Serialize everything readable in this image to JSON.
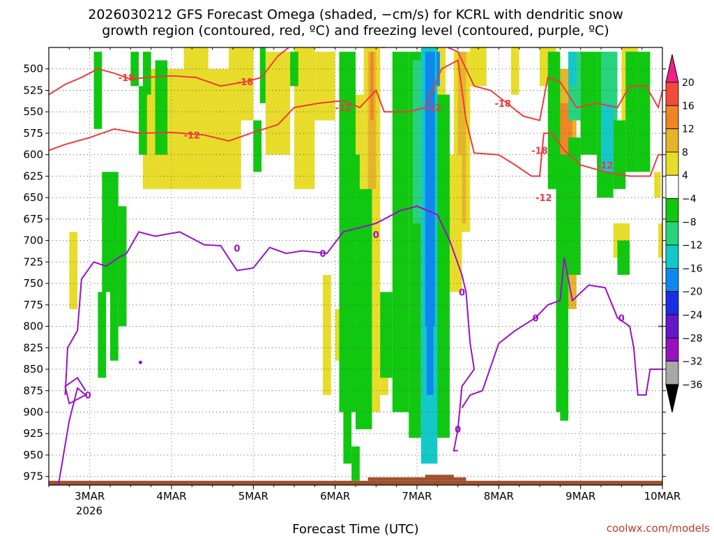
{
  "chart_data": {
    "type": "heatmap",
    "title_line1": "2026030212 GFS Forecast Omega (shaded, −cm/s) for KCRL with dendritic snow",
    "title_line2": "growth region (contoured, red, ºC) and freezing level (contoured, purple, ºC)",
    "xlabel": "Forecast Time (UTC)",
    "x_tick_labels": [
      "3MAR",
      "4MAR",
      "5MAR",
      "6MAR",
      "7MAR",
      "8MAR",
      "9MAR",
      "10MAR"
    ],
    "x_tick_year": "2026",
    "x_range_days": [
      2.5,
      10.0
    ],
    "y_pressure_levels": [
      500,
      525,
      550,
      575,
      600,
      625,
      650,
      675,
      700,
      725,
      750,
      775,
      800,
      825,
      850,
      875,
      900,
      925,
      950,
      975
    ],
    "y_range_hpa": [
      475,
      985
    ],
    "colorbar": {
      "tick_labels": [
        "20",
        "16",
        "12",
        "8",
        "4",
        "−4",
        "−8",
        "−12",
        "−16",
        "−20",
        "−24",
        "−28",
        "−32",
        "−36"
      ],
      "colors": [
        "#f0208a",
        "#f24a3a",
        "#ef8525",
        "#e6b42c",
        "#e8dc2a",
        "#ffffff",
        "#10c810",
        "#28d37e",
        "#14c8c8",
        "#0e88ef",
        "#1a2fe0",
        "#6418c8",
        "#9812c0",
        "#a8a8a8",
        "#000000"
      ]
    },
    "shading_colors": {
      "yellow": "#e8dc2a",
      "gold": "#e6b42c",
      "orange": "#ef8525",
      "green": "#10c810",
      "seagreen": "#28d37e",
      "cyan": "#14c8c8",
      "blue": "#0e88ef",
      "terrain": "#a0522d"
    },
    "contour_labels": {
      "dgz_red": [
        "-18",
        "-18",
        "-18",
        "-12",
        "-12",
        "-12",
        "-18",
        "-12",
        "-12"
      ],
      "freezing_purple": [
        "0",
        "0",
        "0",
        "0",
        "0",
        "0",
        "0",
        "0"
      ]
    },
    "contour_colors": {
      "dgz": "#ee3b3b",
      "freezing": "#9a10c8"
    },
    "credit": "coolwx.com/models"
  }
}
